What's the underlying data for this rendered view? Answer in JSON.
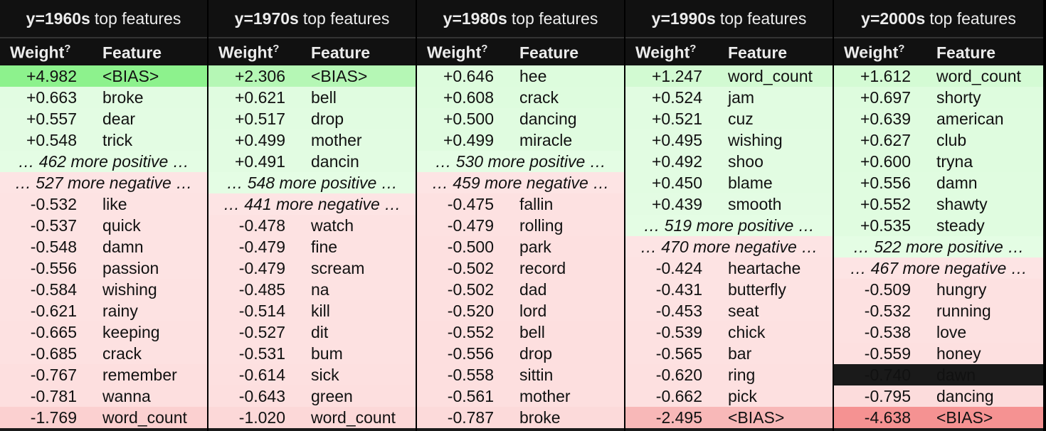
{
  "columns": [
    {
      "title_bold": "y=1960s",
      "title_rest": "top features",
      "header_weight": "Weight",
      "header_sup": "?",
      "header_feature": "Feature",
      "rows": [
        {
          "kind": "feat",
          "w": "+4.982",
          "f": "<BIAS>",
          "bg": "#8df28d"
        },
        {
          "kind": "feat",
          "w": "+0.663",
          "f": "broke",
          "bg": "#e2fce2"
        },
        {
          "kind": "feat",
          "w": "+0.557",
          "f": "dear",
          "bg": "#e3fce3"
        },
        {
          "kind": "feat",
          "w": "+0.548",
          "f": "trick",
          "bg": "#e3fce3"
        },
        {
          "kind": "more",
          "text": "… 462 more positive …",
          "bg": "#e4fde4"
        },
        {
          "kind": "more",
          "text": "… 527 more negative …",
          "bg": "#fde4e4"
        },
        {
          "kind": "feat",
          "w": "-0.532",
          "f": "like",
          "bg": "#fde3e3"
        },
        {
          "kind": "feat",
          "w": "-0.537",
          "f": "quick",
          "bg": "#fde3e3"
        },
        {
          "kind": "feat",
          "w": "-0.548",
          "f": "damn",
          "bg": "#fde3e3"
        },
        {
          "kind": "feat",
          "w": "-0.556",
          "f": "passion",
          "bg": "#fde3e3"
        },
        {
          "kind": "feat",
          "w": "-0.584",
          "f": "wishing",
          "bg": "#fde2e2"
        },
        {
          "kind": "feat",
          "w": "-0.621",
          "f": "rainy",
          "bg": "#fde2e2"
        },
        {
          "kind": "feat",
          "w": "-0.665",
          "f": "keeping",
          "bg": "#fde1e1"
        },
        {
          "kind": "feat",
          "w": "-0.685",
          "f": "crack",
          "bg": "#fde1e1"
        },
        {
          "kind": "feat",
          "w": "-0.767",
          "f": "remember",
          "bg": "#fddfdf"
        },
        {
          "kind": "feat",
          "w": "-0.781",
          "f": "wanna",
          "bg": "#fddfdf"
        },
        {
          "kind": "feat",
          "w": "-1.769",
          "f": "word_count",
          "bg": "#fbd0d0"
        }
      ]
    },
    {
      "title_bold": "y=1970s",
      "title_rest": "top features",
      "header_weight": "Weight",
      "header_sup": "?",
      "header_feature": "Feature",
      "rows": [
        {
          "kind": "feat",
          "w": "+2.306",
          "f": "<BIAS>",
          "bg": "#b5f7b5"
        },
        {
          "kind": "feat",
          "w": "+0.621",
          "f": "bell",
          "bg": "#e0fce0"
        },
        {
          "kind": "feat",
          "w": "+0.517",
          "f": "drop",
          "bg": "#e1fce1"
        },
        {
          "kind": "feat",
          "w": "+0.499",
          "f": "mother",
          "bg": "#e2fce2"
        },
        {
          "kind": "feat",
          "w": "+0.491",
          "f": "dancin",
          "bg": "#e2fce2"
        },
        {
          "kind": "more",
          "text": "… 548 more positive …",
          "bg": "#e4fde4"
        },
        {
          "kind": "more",
          "text": "… 441 more negative …",
          "bg": "#fde4e4"
        },
        {
          "kind": "feat",
          "w": "-0.478",
          "f": "watch",
          "bg": "#fde2e2"
        },
        {
          "kind": "feat",
          "w": "-0.479",
          "f": "fine",
          "bg": "#fde2e2"
        },
        {
          "kind": "feat",
          "w": "-0.479",
          "f": "scream",
          "bg": "#fde2e2"
        },
        {
          "kind": "feat",
          "w": "-0.485",
          "f": "na",
          "bg": "#fde2e2"
        },
        {
          "kind": "feat",
          "w": "-0.514",
          "f": "kill",
          "bg": "#fde1e1"
        },
        {
          "kind": "feat",
          "w": "-0.527",
          "f": "dit",
          "bg": "#fde1e1"
        },
        {
          "kind": "feat",
          "w": "-0.531",
          "f": "bum",
          "bg": "#fde1e1"
        },
        {
          "kind": "feat",
          "w": "-0.614",
          "f": "sick",
          "bg": "#fde0e0"
        },
        {
          "kind": "feat",
          "w": "-0.643",
          "f": "green",
          "bg": "#fddfdf"
        },
        {
          "kind": "feat",
          "w": "-1.020",
          "f": "word_count",
          "bg": "#fcd8d8"
        }
      ]
    },
    {
      "title_bold": "y=1980s",
      "title_rest": "top features",
      "header_weight": "Weight",
      "header_sup": "?",
      "header_feature": "Feature",
      "rows": [
        {
          "kind": "feat",
          "w": "+0.646",
          "f": "hee",
          "bg": "#ddfcdd"
        },
        {
          "kind": "feat",
          "w": "+0.608",
          "f": "crack",
          "bg": "#defcde"
        },
        {
          "kind": "feat",
          "w": "+0.500",
          "f": "dancing",
          "bg": "#e0fce0"
        },
        {
          "kind": "feat",
          "w": "+0.499",
          "f": "miracle",
          "bg": "#e0fce0"
        },
        {
          "kind": "more",
          "text": "… 530 more positive …",
          "bg": "#e4fde4"
        },
        {
          "kind": "more",
          "text": "… 459 more negative …",
          "bg": "#fde4e4"
        },
        {
          "kind": "feat",
          "w": "-0.475",
          "f": "fallin",
          "bg": "#fde1e1"
        },
        {
          "kind": "feat",
          "w": "-0.479",
          "f": "rolling",
          "bg": "#fde1e1"
        },
        {
          "kind": "feat",
          "w": "-0.500",
          "f": "park",
          "bg": "#fde0e0"
        },
        {
          "kind": "feat",
          "w": "-0.502",
          "f": "record",
          "bg": "#fde0e0"
        },
        {
          "kind": "feat",
          "w": "-0.502",
          "f": "dad",
          "bg": "#fde0e0"
        },
        {
          "kind": "feat",
          "w": "-0.520",
          "f": "lord",
          "bg": "#fde0e0"
        },
        {
          "kind": "feat",
          "w": "-0.552",
          "f": "bell",
          "bg": "#fddfdf"
        },
        {
          "kind": "feat",
          "w": "-0.556",
          "f": "drop",
          "bg": "#fddfdf"
        },
        {
          "kind": "feat",
          "w": "-0.558",
          "f": "sittin",
          "bg": "#fddfdf"
        },
        {
          "kind": "feat",
          "w": "-0.561",
          "f": "mother",
          "bg": "#fddfdf"
        },
        {
          "kind": "feat",
          "w": "-0.787",
          "f": "broke",
          "bg": "#fcdada"
        }
      ]
    },
    {
      "title_bold": "y=1990s",
      "title_rest": "top features",
      "header_weight": "Weight",
      "header_sup": "?",
      "header_feature": "Feature",
      "rows": [
        {
          "kind": "feat",
          "w": "+1.247",
          "f": "word_count",
          "bg": "#d2fad2"
        },
        {
          "kind": "feat",
          "w": "+0.524",
          "f": "jam",
          "bg": "#e1fce1"
        },
        {
          "kind": "feat",
          "w": "+0.521",
          "f": "cuz",
          "bg": "#e1fce1"
        },
        {
          "kind": "feat",
          "w": "+0.495",
          "f": "wishing",
          "bg": "#e2fce2"
        },
        {
          "kind": "feat",
          "w": "+0.492",
          "f": "shoo",
          "bg": "#e2fce2"
        },
        {
          "kind": "feat",
          "w": "+0.450",
          "f": "blame",
          "bg": "#e2fce2"
        },
        {
          "kind": "feat",
          "w": "+0.439",
          "f": "smooth",
          "bg": "#e3fce3"
        },
        {
          "kind": "more",
          "text": "… 519 more positive …",
          "bg": "#e4fde4"
        },
        {
          "kind": "more",
          "text": "… 470 more negative …",
          "bg": "#fde4e4"
        },
        {
          "kind": "feat",
          "w": "-0.424",
          "f": "heartache",
          "bg": "#fde3e3"
        },
        {
          "kind": "feat",
          "w": "-0.431",
          "f": "butterfly",
          "bg": "#fde3e3"
        },
        {
          "kind": "feat",
          "w": "-0.453",
          "f": "seat",
          "bg": "#fde2e2"
        },
        {
          "kind": "feat",
          "w": "-0.539",
          "f": "chick",
          "bg": "#fde1e1"
        },
        {
          "kind": "feat",
          "w": "-0.565",
          "f": "bar",
          "bg": "#fde1e1"
        },
        {
          "kind": "feat",
          "w": "-0.620",
          "f": "ring",
          "bg": "#fde0e0"
        },
        {
          "kind": "feat",
          "w": "-0.662",
          "f": "pick",
          "bg": "#fde0e0"
        },
        {
          "kind": "feat",
          "w": "-2.495",
          "f": "<BIAS>",
          "bg": "#f8b8b8"
        }
      ]
    },
    {
      "title_bold": "y=2000s",
      "title_rest": "top features",
      "header_weight": "Weight",
      "header_sup": "?",
      "header_feature": "Feature",
      "rows": [
        {
          "kind": "feat",
          "w": "+1.612",
          "f": "word_count",
          "bg": "#d4fbd4"
        },
        {
          "kind": "feat",
          "w": "+0.697",
          "f": "shorty",
          "bg": "#defcde"
        },
        {
          "kind": "feat",
          "w": "+0.639",
          "f": "american",
          "bg": "#dffcdf"
        },
        {
          "kind": "feat",
          "w": "+0.627",
          "f": "club",
          "bg": "#dffcdf"
        },
        {
          "kind": "feat",
          "w": "+0.600",
          "f": "tryna",
          "bg": "#dffcdf"
        },
        {
          "kind": "feat",
          "w": "+0.556",
          "f": "damn",
          "bg": "#e0fce0"
        },
        {
          "kind": "feat",
          "w": "+0.552",
          "f": "shawty",
          "bg": "#e0fce0"
        },
        {
          "kind": "feat",
          "w": "+0.535",
          "f": "steady",
          "bg": "#e0fce0"
        },
        {
          "kind": "more",
          "text": "… 522 more positive …",
          "bg": "#e4fde4"
        },
        {
          "kind": "more",
          "text": "… 467 more negative …",
          "bg": "#fde4e4"
        },
        {
          "kind": "feat",
          "w": "-0.509",
          "f": "hungry",
          "bg": "#fde1e1"
        },
        {
          "kind": "feat",
          "w": "-0.532",
          "f": "running",
          "bg": "#fde1e1"
        },
        {
          "kind": "feat",
          "w": "-0.538",
          "f": "love",
          "bg": "#fde1e1"
        },
        {
          "kind": "feat",
          "w": "-0.559",
          "f": "honey",
          "bg": "#fde0e0"
        },
        {
          "kind": "feat",
          "w": "-0.740",
          "f": "dawn",
          "bg": "#fdddddd"
        },
        {
          "kind": "feat",
          "w": "-0.795",
          "f": "dancing",
          "bg": "#fcdcdc"
        },
        {
          "kind": "feat",
          "w": "-4.638",
          "f": "<BIAS>",
          "bg": "#f59292"
        }
      ]
    }
  ]
}
